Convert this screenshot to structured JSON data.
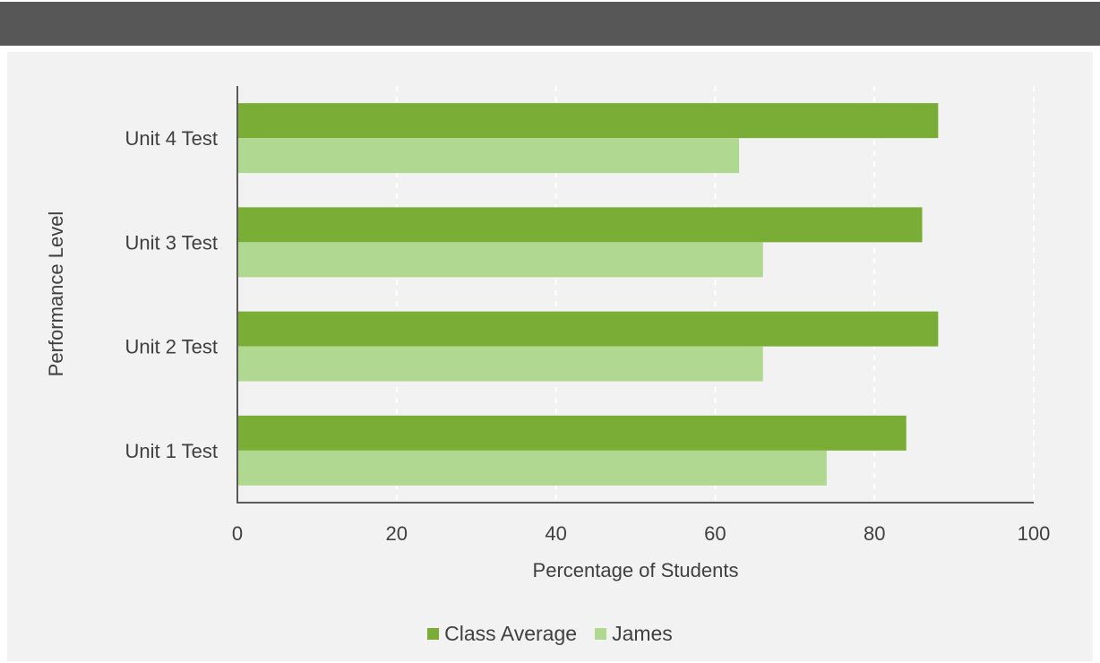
{
  "chart_data": {
    "type": "bar",
    "orientation": "horizontal",
    "title": "",
    "xlabel": "Percentage of Students",
    "ylabel": "Performance Level",
    "categories": [
      "Unit 1 Test",
      "Unit 2 Test",
      "Unit 3 Test",
      "Unit 4 Test"
    ],
    "series": [
      {
        "name": "Class Average",
        "color": "#7aad35",
        "values": [
          84,
          88,
          86,
          88
        ]
      },
      {
        "name": "James",
        "color": "#b1d891",
        "values": [
          74,
          66,
          66,
          63
        ]
      }
    ],
    "xlim": [
      0,
      100
    ],
    "xticks": [
      "0",
      "20",
      "40",
      "60",
      "80",
      "100"
    ],
    "grid": "vertical dashed",
    "legend": "bottom"
  }
}
